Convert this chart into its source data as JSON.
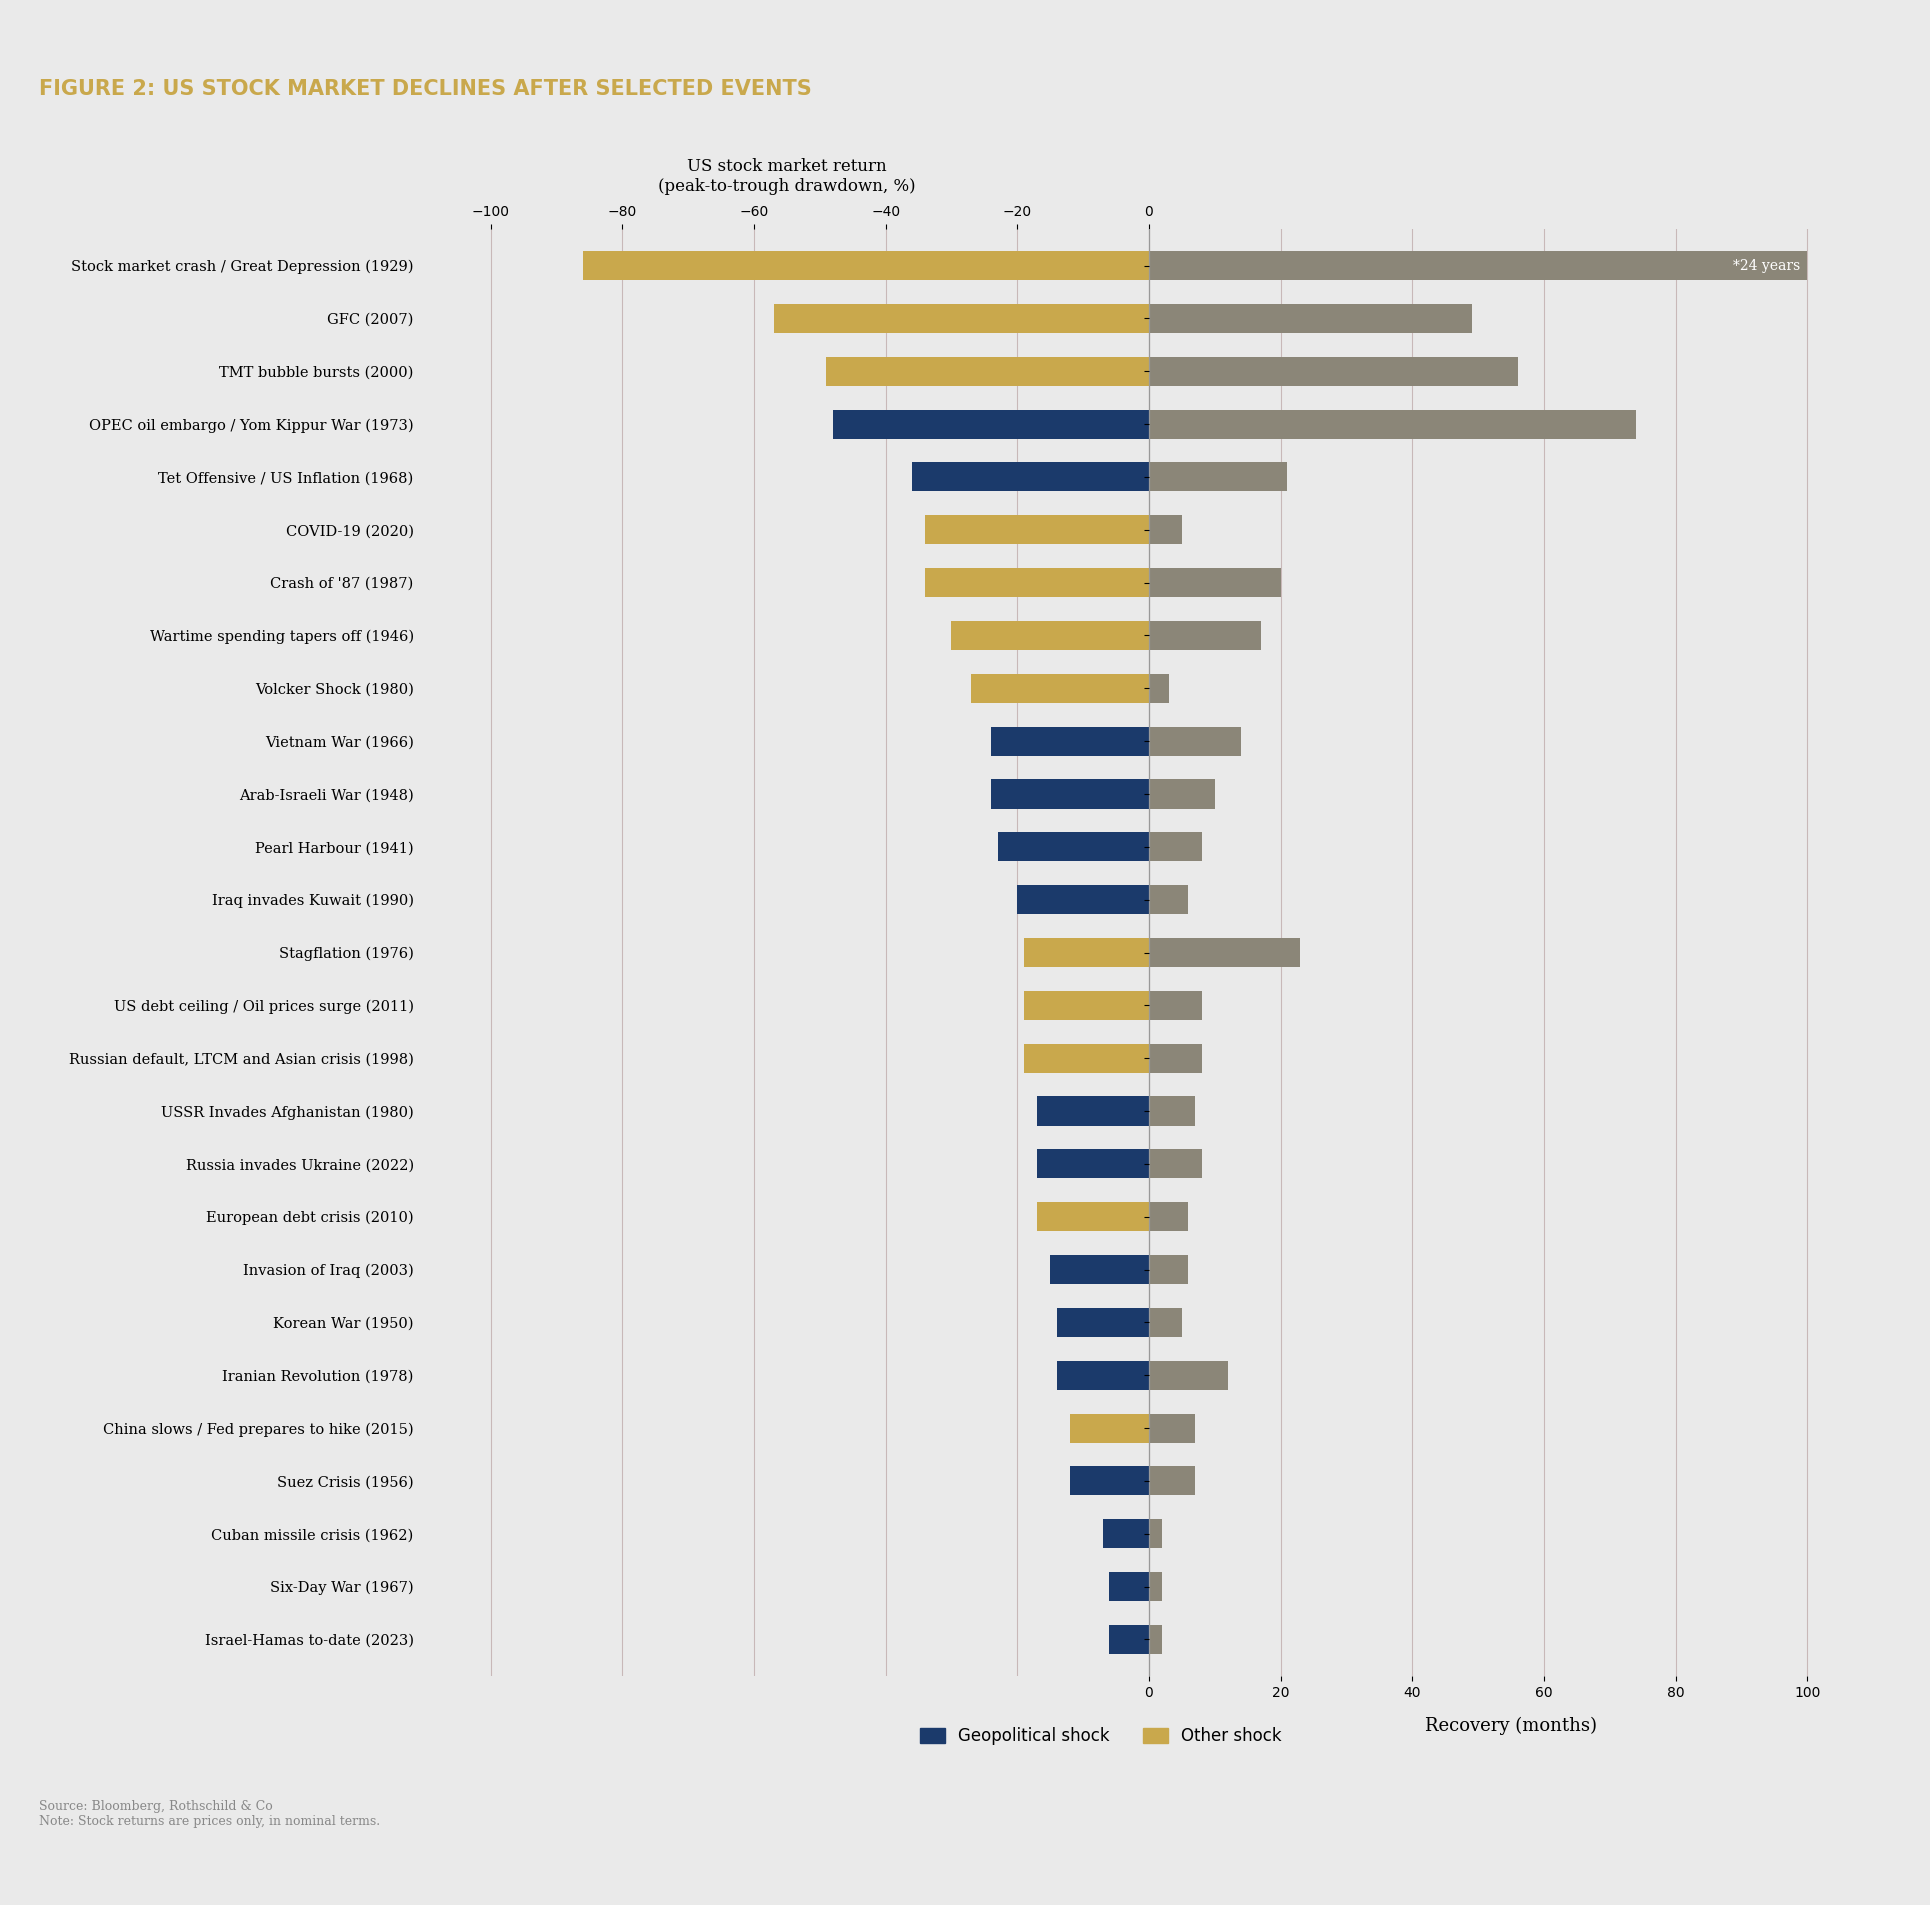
{
  "title": "FIGURE 2: US STOCK MARKET DECLINES AFTER SELECTED EVENTS",
  "title_color": "#C9A84C",
  "background_color": "#EAEAEA",
  "left_axis_label": "US stock market return\n(peak-to-trough drawdown, %)",
  "right_axis_label": "Recovery (months)",
  "source_text": "Source: Bloomberg, Rothschild & Co\nNote: Stock returns are prices only, in nominal terms.",
  "events": [
    "Stock market crash / Great Depression (1929)",
    "GFC (2007)",
    "TMT bubble bursts (2000)",
    "OPEC oil embargo / Yom Kippur War (1973)",
    "Tet Offensive / US Inflation (1968)",
    "COVID-19 (2020)",
    "Crash of '87 (1987)",
    "Wartime spending tapers off (1946)",
    "Volcker Shock (1980)",
    "Vietnam War (1966)",
    "Arab-Israeli War (1948)",
    "Pearl Harbour (1941)",
    "Iraq invades Kuwait (1990)",
    "Stagflation (1976)",
    "US debt ceiling / Oil prices surge (2011)",
    "Russian default, LTCM and Asian crisis (1998)",
    "USSR Invades Afghanistan (1980)",
    "Russia invades Ukraine (2022)",
    "European debt crisis (2010)",
    "Invasion of Iraq (2003)",
    "Korean War (1950)",
    "Iranian Revolution (1978)",
    "China slows / Fed prepares to hike (2015)",
    "Suez Crisis (1956)",
    "Cuban missile crisis (1962)",
    "Six-Day War (1967)",
    "Israel-Hamas to-date (2023)"
  ],
  "drawdown": [
    -86,
    -57,
    -49,
    -48,
    -36,
    -34,
    -34,
    -30,
    -27,
    -24,
    -24,
    -23,
    -20,
    -19,
    -19,
    -19,
    -17,
    -17,
    -17,
    -15,
    -14,
    -14,
    -12,
    -12,
    -7,
    -6,
    -6
  ],
  "recovery_months": [
    288,
    49,
    56,
    74,
    21,
    5,
    20,
    17,
    3,
    14,
    10,
    8,
    6,
    23,
    8,
    8,
    7,
    8,
    6,
    6,
    5,
    12,
    7,
    7,
    2,
    2,
    2
  ],
  "shock_type": [
    "other",
    "other",
    "other",
    "geo",
    "geo",
    "other",
    "other",
    "other",
    "other",
    "geo",
    "geo",
    "geo",
    "geo",
    "other",
    "other",
    "other",
    "geo",
    "geo",
    "other",
    "geo",
    "geo",
    "geo",
    "other",
    "geo",
    "geo",
    "geo",
    "geo"
  ],
  "recovery_note": "*24 years",
  "geo_color": "#1B3A6B",
  "other_color": "#C9A84C",
  "recovery_color": "#8B8678",
  "grid_color": "#C8B8B8",
  "drawdown_xlim": [
    -110,
    0
  ],
  "recovery_xlim": [
    0,
    110
  ],
  "drawdown_ticks": [
    -100,
    -80,
    -60,
    -40,
    -20,
    0
  ],
  "recovery_ticks": [
    0,
    20,
    40,
    60,
    80,
    100
  ]
}
